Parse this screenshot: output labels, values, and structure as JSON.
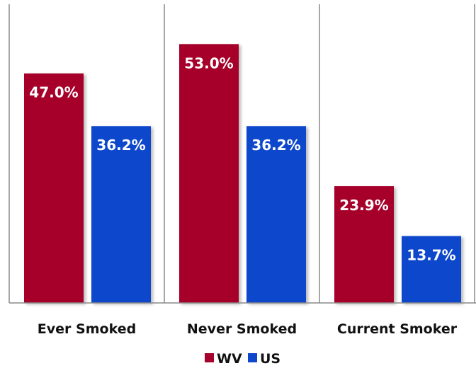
{
  "chart_data": {
    "type": "bar",
    "title": "",
    "xlabel": "",
    "ylabel": "",
    "categories": [
      "Ever Smoked",
      "Never Smoked",
      "Current Smoker"
    ],
    "series": [
      {
        "name": "WV",
        "color": "#a6002c",
        "values": [
          47.0,
          53.0,
          23.9
        ],
        "labels": [
          "47.0%",
          "53.0%",
          "23.9%"
        ]
      },
      {
        "name": "US",
        "color": "#0f47cc",
        "values": [
          36.2,
          36.2,
          13.7
        ],
        "labels": [
          "36.2%",
          "36.2%",
          "13.7%"
        ]
      }
    ],
    "ylim": [
      0,
      60
    ],
    "grid": false,
    "category_separators": true,
    "legend": "bottom-center",
    "data_label_position": "inside-top"
  }
}
